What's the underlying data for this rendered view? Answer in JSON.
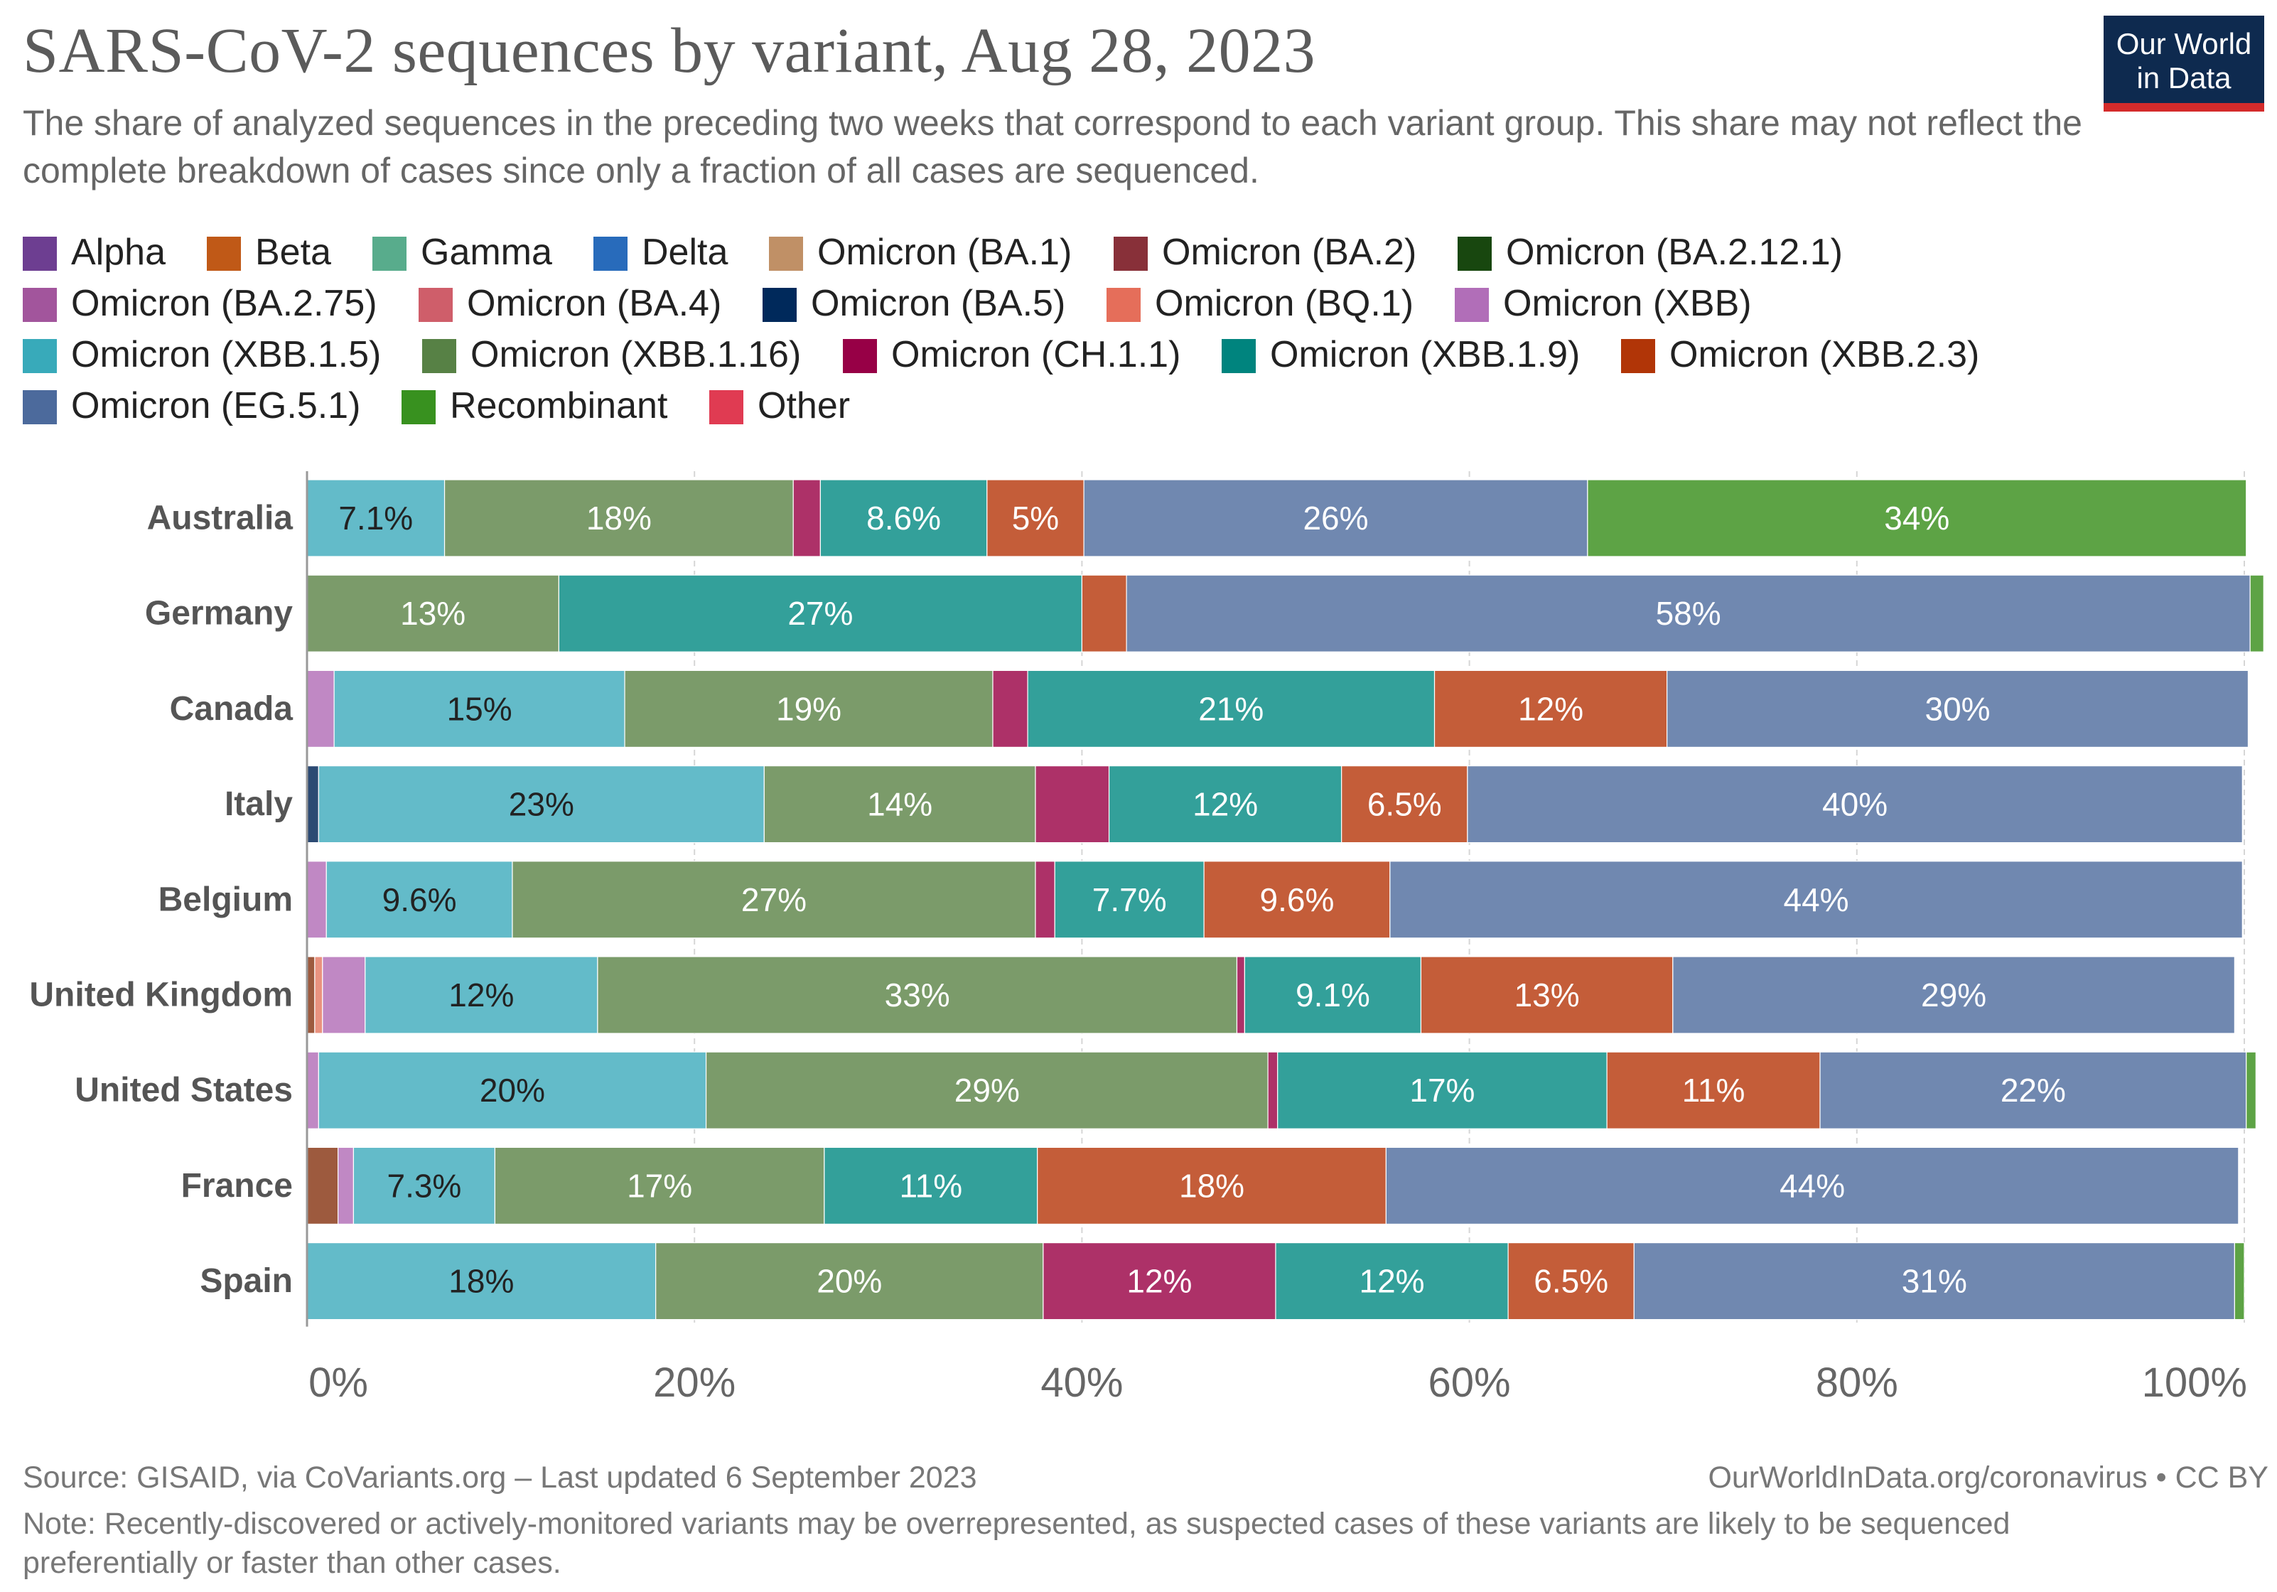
{
  "title": "SARS-CoV-2 sequences by variant, Aug 28, 2023",
  "subtitle": "The share of analyzed sequences in the preceding two weeks that correspond to each variant group. This share may not reflect the complete breakdown of cases since only a fraction of all cases are sequenced.",
  "logo": {
    "line1": "Our World",
    "line2": "in Data"
  },
  "legend": [
    {
      "name": "Alpha",
      "color": "#6d3e91"
    },
    {
      "name": "Beta",
      "color": "#c05917"
    },
    {
      "name": "Gamma",
      "color": "#58ac8c"
    },
    {
      "name": "Delta",
      "color": "#286bbb"
    },
    {
      "name": "Omicron (BA.1)",
      "color": "#c09066"
    },
    {
      "name": "Omicron (BA.2)",
      "color": "#883039"
    },
    {
      "name": "Omicron (BA.2.12.1)",
      "color": "#18470f"
    },
    {
      "name": "Omicron (BA.2.75)",
      "color": "#a2559c"
    },
    {
      "name": "Omicron (BA.4)",
      "color": "#cf5e6a"
    },
    {
      "name": "Omicron (BA.5)",
      "color": "#00295b"
    },
    {
      "name": "Omicron (BQ.1)",
      "color": "#e56e5a"
    },
    {
      "name": "Omicron (XBB)",
      "color": "#b16eb8"
    },
    {
      "name": "Omicron (XBB.1.5)",
      "color": "#38aaba"
    },
    {
      "name": "Omicron (XBB.1.16)",
      "color": "#578145"
    },
    {
      "name": "Omicron (CH.1.1)",
      "color": "#970046"
    },
    {
      "name": "Omicron (XBB.1.9)",
      "color": "#00847e"
    },
    {
      "name": "Omicron (XBB.2.3)",
      "color": "#b13507"
    },
    {
      "name": "Omicron (EG.5.1)",
      "color": "#4c6a9c"
    },
    {
      "name": "Recombinant",
      "color": "#38911f"
    },
    {
      "name": "Other",
      "color": "#e03b52"
    }
  ],
  "chart_data": {
    "type": "bar",
    "orientation": "horizontal",
    "stacked": true,
    "title": "SARS-CoV-2 sequences by variant, Aug 28, 2023",
    "xlabel": "",
    "ylabel": "",
    "xlim": [
      0,
      100
    ],
    "x_ticks": [
      "0%",
      "20%",
      "40%",
      "60%",
      "80%",
      "100%"
    ],
    "grid": true,
    "categories": [
      "Australia",
      "Germany",
      "Canada",
      "Italy",
      "Belgium",
      "United Kingdom",
      "United States",
      "France",
      "Spain"
    ],
    "series": [
      {
        "name": "Omicron (BA.2.75)",
        "color": "#9d5a3e",
        "text_color": "#ffffff",
        "values": [
          0,
          0,
          0,
          0,
          0,
          0.4,
          0,
          1.6,
          0
        ]
      },
      {
        "name": "Omicron (BA.5)",
        "color": "#2c4a73",
        "text_color": "#ffffff",
        "values": [
          0,
          0,
          0,
          0.6,
          0,
          0,
          0,
          0,
          0
        ]
      },
      {
        "name": "Omicron (BQ.1)",
        "color": "#e9927f",
        "text_color": "#222222",
        "values": [
          0,
          0,
          0,
          0,
          0,
          0.4,
          0,
          0,
          0
        ]
      },
      {
        "name": "Omicron (XBB)",
        "color": "#c088c4",
        "text_color": "#222222",
        "values": [
          0,
          0,
          1.4,
          0,
          1,
          2.2,
          0.6,
          0.8,
          0
        ]
      },
      {
        "name": "Omicron (XBB.1.5)",
        "color": "#63bbc9",
        "text_color": "#222222",
        "values": [
          7.1,
          0,
          15,
          23,
          9.6,
          12,
          20,
          7.3,
          18
        ]
      },
      {
        "name": "Omicron (XBB.1.16)",
        "color": "#7b9b6a",
        "text_color": "#ffffff",
        "values": [
          18,
          13,
          19,
          14,
          27,
          33,
          29,
          17,
          20
        ]
      },
      {
        "name": "Omicron (CH.1.1)",
        "color": "#ad3168",
        "text_color": "#ffffff",
        "values": [
          1.4,
          0,
          1.8,
          3.8,
          1,
          0.4,
          0.5,
          0,
          12
        ]
      },
      {
        "name": "Omicron (XBB.1.9)",
        "color": "#33a09a",
        "text_color": "#ffffff",
        "values": [
          8.6,
          27,
          21,
          12,
          7.7,
          9.1,
          17,
          11,
          12
        ]
      },
      {
        "name": "Omicron (XBB.2.3)",
        "color": "#c45d39",
        "text_color": "#ffffff",
        "values": [
          5,
          2.3,
          12,
          6.5,
          9.6,
          13,
          11,
          18,
          6.5
        ]
      },
      {
        "name": "Omicron (EG.5.1)",
        "color": "#7088b0",
        "text_color": "#ffffff",
        "values": [
          26,
          58,
          30,
          40,
          44,
          29,
          22,
          44,
          31
        ]
      },
      {
        "name": "Recombinant",
        "color": "#5da345",
        "text_color": "#ffffff",
        "values": [
          34,
          0.7,
          0,
          0,
          0,
          0,
          0.5,
          0,
          0.5
        ]
      }
    ],
    "data_labels": [
      [
        "",
        "",
        "",
        "",
        "7.1%",
        "18%",
        "",
        "8.6%",
        "5%",
        "26%",
        "34%"
      ],
      [
        "",
        "",
        "",
        "",
        "",
        "13%",
        "",
        "27%",
        "",
        "58%",
        ""
      ],
      [
        "",
        "",
        "",
        "",
        "15%",
        "19%",
        "",
        "21%",
        "12%",
        "30%",
        ""
      ],
      [
        "",
        "",
        "",
        "",
        "23%",
        "14%",
        "",
        "12%",
        "6.5%",
        "40%",
        ""
      ],
      [
        "",
        "",
        "",
        "",
        "9.6%",
        "27%",
        "",
        "7.7%",
        "9.6%",
        "44%",
        ""
      ],
      [
        "",
        "",
        "",
        "",
        "12%",
        "33%",
        "",
        "9.1%",
        "13%",
        "29%",
        ""
      ],
      [
        "",
        "",
        "",
        "",
        "20%",
        "29%",
        "",
        "17%",
        "11%",
        "22%",
        ""
      ],
      [
        "",
        "",
        "",
        "",
        "7.3%",
        "17%",
        "",
        "11%",
        "18%",
        "44%",
        ""
      ],
      [
        "",
        "",
        "",
        "",
        "18%",
        "20%",
        "12%",
        "12%",
        "6.5%",
        "31%",
        ""
      ]
    ]
  },
  "footer": {
    "source": "Source: GISAID, via CoVariants.org – Last updated 6 September 2023",
    "credit": "OurWorldInData.org/coronavirus • CC BY",
    "note": "Note: Recently-discovered or actively-monitored variants may be overrepresented, as suspected cases of these variants are likely to be sequenced preferentially or faster than other cases."
  }
}
